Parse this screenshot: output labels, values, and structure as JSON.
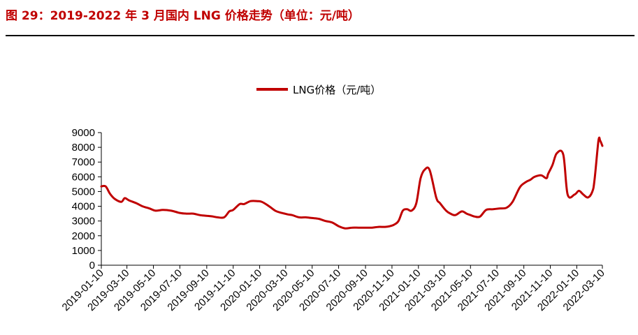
{
  "figure": {
    "title": "图 29：2019-2022 年 3 月国内 LNG 价格走势（单位：元/吨）"
  },
  "colors": {
    "accent": "#c00000",
    "line": "#c00000",
    "axis": "#000000"
  },
  "chart_data": {
    "type": "line",
    "title": "",
    "xlabel": "",
    "ylabel": "",
    "ylim": [
      0,
      9000
    ],
    "yticks": [
      0,
      1000,
      2000,
      3000,
      4000,
      5000,
      6000,
      7000,
      8000,
      9000
    ],
    "xlim": [
      "2019-01-10",
      "2022-03-10"
    ],
    "xticks": [
      "2019-01-10",
      "2019-03-10",
      "2019-05-10",
      "2019-07-10",
      "2019-09-10",
      "2019-11-10",
      "2020-01-10",
      "2020-03-10",
      "2020-05-10",
      "2020-07-10",
      "2020-09-10",
      "2020-11-10",
      "2021-01-10",
      "2021-03-10",
      "2021-05-10",
      "2021-07-10",
      "2021-09-10",
      "2021-11-10",
      "2022-01-10",
      "2022-03-10"
    ],
    "grid": false,
    "legend": "top-center",
    "series": [
      {
        "name": "LNG价格（元/吨）",
        "x": [
          "2019-01-10",
          "2019-01-20",
          "2019-01-30",
          "2019-02-10",
          "2019-02-25",
          "2019-03-05",
          "2019-03-15",
          "2019-04-01",
          "2019-04-15",
          "2019-05-01",
          "2019-05-15",
          "2019-06-01",
          "2019-06-20",
          "2019-07-10",
          "2019-07-25",
          "2019-08-10",
          "2019-08-25",
          "2019-09-10",
          "2019-09-25",
          "2019-10-05",
          "2019-10-20",
          "2019-11-01",
          "2019-11-10",
          "2019-11-25",
          "2019-12-05",
          "2019-12-20",
          "2020-01-05",
          "2020-01-15",
          "2020-02-01",
          "2020-02-15",
          "2020-03-01",
          "2020-03-15",
          "2020-03-25",
          "2020-04-10",
          "2020-04-25",
          "2020-05-10",
          "2020-05-25",
          "2020-06-10",
          "2020-06-25",
          "2020-07-10",
          "2020-07-25",
          "2020-08-10",
          "2020-08-25",
          "2020-09-10",
          "2020-09-25",
          "2020-10-10",
          "2020-10-25",
          "2020-11-05",
          "2020-11-15",
          "2020-11-25",
          "2020-12-05",
          "2020-12-15",
          "2020-12-25",
          "2021-01-05",
          "2021-01-15",
          "2021-01-25",
          "2021-02-05",
          "2021-02-20",
          "2021-03-01",
          "2021-03-15",
          "2021-03-25",
          "2021-04-05",
          "2021-04-20",
          "2021-05-01",
          "2021-05-10",
          "2021-05-20",
          "2021-06-01",
          "2021-06-15",
          "2021-07-01",
          "2021-07-15",
          "2021-08-01",
          "2021-08-15",
          "2021-09-01",
          "2021-09-15",
          "2021-09-25",
          "2021-10-05",
          "2021-10-20",
          "2021-11-01",
          "2021-11-05",
          "2021-11-15",
          "2021-11-25",
          "2021-12-10",
          "2021-12-20",
          "2022-01-05",
          "2022-01-15",
          "2022-01-25",
          "2022-02-05",
          "2022-02-15",
          "2022-02-20",
          "2022-03-01",
          "2022-03-05",
          "2022-03-10"
        ],
        "values": [
          5350,
          5350,
          4850,
          4500,
          4300,
          4550,
          4400,
          4200,
          4000,
          3850,
          3700,
          3750,
          3700,
          3550,
          3500,
          3500,
          3400,
          3350,
          3300,
          3250,
          3250,
          3650,
          3750,
          4150,
          4150,
          4350,
          4350,
          4300,
          4000,
          3700,
          3550,
          3450,
          3400,
          3250,
          3250,
          3200,
          3150,
          3000,
          2900,
          2650,
          2500,
          2550,
          2550,
          2550,
          2550,
          2600,
          2600,
          2650,
          2750,
          3000,
          3700,
          3800,
          3700,
          4200,
          5900,
          6500,
          6450,
          4600,
          4200,
          3700,
          3500,
          3400,
          3650,
          3500,
          3400,
          3300,
          3300,
          3750,
          3800,
          3850,
          3900,
          4300,
          5300,
          5650,
          5800,
          6000,
          6100,
          5900,
          6200,
          6800,
          7600,
          7500,
          4800,
          4800,
          5050,
          4800,
          4600,
          5000,
          5800,
          8450,
          8450,
          8100
        ]
      }
    ]
  }
}
